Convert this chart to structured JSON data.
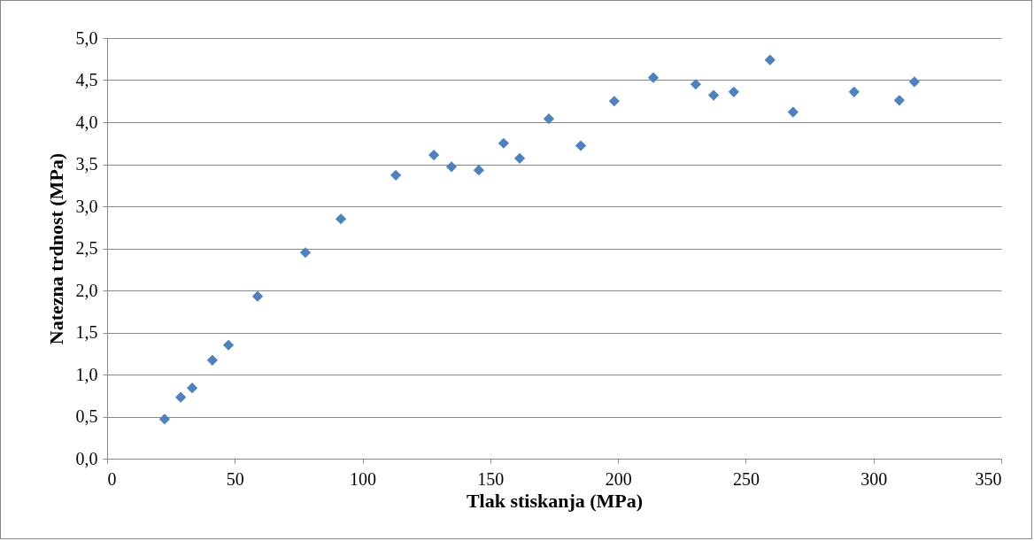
{
  "chart_data": {
    "type": "scatter",
    "xlabel": "Tlak stiskanja (MPa)",
    "ylabel": "Natezna trdnost (MPa)",
    "x": [
      22.5,
      28.8,
      33.3,
      41.2,
      47.5,
      58.9,
      77.6,
      91.5,
      113,
      127.9,
      134.8,
      145.5,
      155.2,
      161.5,
      172.9,
      185.4,
      198.5,
      213.8,
      230.4,
      237.4,
      245.3,
      259.5,
      268.5,
      292.4,
      310.1,
      316
    ],
    "series": [
      {
        "color": "#4f81bd",
        "values": [
          0.47,
          0.73,
          0.84,
          1.17,
          1.35,
          1.93,
          2.45,
          2.85,
          3.37,
          3.61,
          3.47,
          3.43,
          3.75,
          3.57,
          4.04,
          3.72,
          4.25,
          4.53,
          4.45,
          4.32,
          4.36,
          4.74,
          4.12,
          4.36,
          4.26,
          4.48
        ]
      }
    ],
    "xlim": [
      0,
      350
    ],
    "xticks": [
      0,
      50,
      100,
      150,
      200,
      250,
      300,
      350
    ],
    "ylim": [
      0,
      5
    ],
    "yticks": [
      {
        "value": 0,
        "label": "0,0"
      },
      {
        "value": 0.5,
        "label": "0,5"
      },
      {
        "value": 1,
        "label": "1,0"
      },
      {
        "value": 1.5,
        "label": "1,5"
      },
      {
        "value": 2,
        "label": "2,0"
      },
      {
        "value": 2.5,
        "label": "2,5"
      },
      {
        "value": 3,
        "label": "3,0"
      },
      {
        "value": 3.5,
        "label": "3,5"
      },
      {
        "value": 4,
        "label": "4,0"
      },
      {
        "value": 4.5,
        "label": "4,5"
      },
      {
        "value": 5,
        "label": "5,0"
      }
    ],
    "grid": "y",
    "marker": "diamond"
  }
}
